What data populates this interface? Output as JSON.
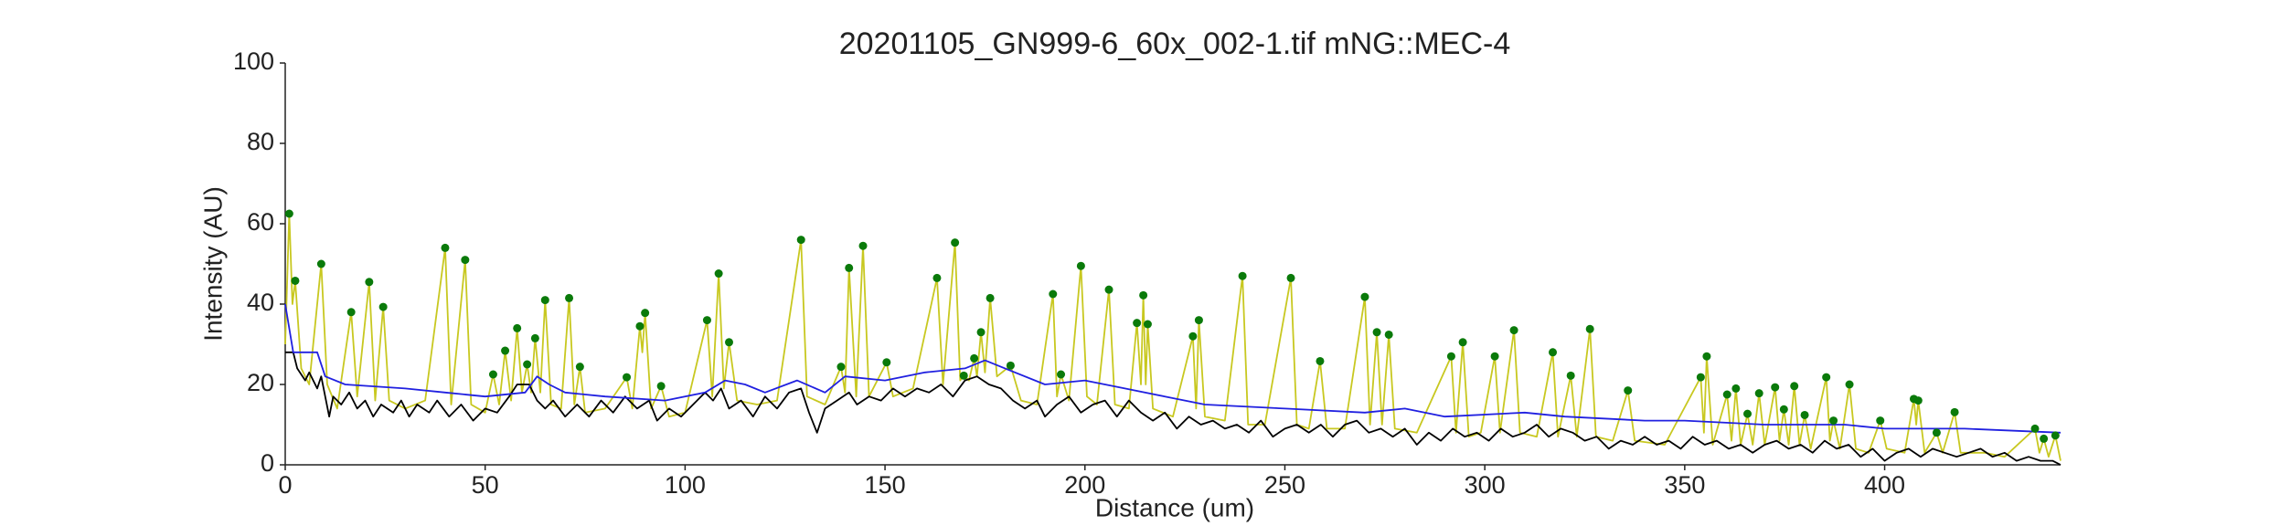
{
  "chart_data": {
    "type": "line",
    "title": "20201105_GN999-6_60x_002-1.tif mNG::MEC-4",
    "xlabel": "Distance (um)",
    "ylabel": "Intensity (AU)",
    "xlim": [
      0,
      444
    ],
    "ylim": [
      0,
      100
    ],
    "xticks": [
      0,
      50,
      100,
      150,
      200,
      250,
      300,
      350,
      400
    ],
    "yticks": [
      0,
      20,
      40,
      60,
      80,
      100
    ],
    "grid": false,
    "series": [
      {
        "color": "#c8c820",
        "mode": "line",
        "x": [
          0,
          1,
          1.8,
          2.5,
          4,
          6,
          9,
          10.5,
          13,
          16.5,
          18,
          21,
          22.5,
          24.5,
          26,
          30,
          35,
          40,
          41.5,
          45,
          46.5,
          50,
          52,
          53.5,
          55,
          56.5,
          58,
          59.2,
          60.5,
          61.5,
          62.5,
          63.8,
          65,
          66.5,
          69,
          71,
          72.3,
          73.7,
          75,
          80,
          85.4,
          86.8,
          88.7,
          89.3,
          90,
          91.5,
          94,
          96,
          100,
          105.5,
          106.8,
          108.4,
          109.7,
          111,
          113,
          118,
          123,
          129,
          130.5,
          135,
          139,
          140,
          141,
          142.8,
          144.5,
          146,
          150.4,
          152,
          157,
          163,
          164.5,
          167.5,
          168.8,
          169.7,
          171,
          172.3,
          173,
          174,
          175,
          176.3,
          178,
          181.4,
          184,
          188,
          192,
          193,
          194,
          196,
          199,
          200.5,
          203,
          206,
          207.5,
          211,
          213,
          214,
          214.6,
          215.2,
          215.7,
          217,
          222,
          227,
          227.8,
          228.5,
          230,
          235,
          239.4,
          240.8,
          245,
          251.5,
          253,
          256,
          258.8,
          260.5,
          265,
          270,
          271.3,
          273,
          274.3,
          276,
          277.5,
          283,
          291.6,
          292.8,
          294.5,
          296,
          299,
          302.5,
          303.8,
          307.3,
          308.8,
          313,
          317,
          318.3,
          321.5,
          323,
          326.3,
          327.8,
          332,
          335.8,
          337.5,
          345,
          354,
          354.8,
          355.5,
          357,
          360.6,
          361.7,
          362.8,
          364,
          365.7,
          367,
          368.6,
          370,
          372.6,
          373.7,
          374.8,
          376,
          377.4,
          378.7,
          380,
          381.5,
          385.4,
          386.3,
          387.2,
          388.8,
          391.2,
          392.8,
          396,
          398.9,
          400.5,
          405,
          407.3,
          407.9,
          408.4,
          410,
          413,
          414.5,
          417.5,
          419,
          425,
          430,
          437.6,
          438.7,
          439.8,
          441,
          442.7,
          444
        ],
        "values": [
          30,
          62.5,
          40,
          45.8,
          24,
          20,
          50,
          20,
          14,
          38,
          17,
          45.5,
          16,
          39.3,
          16,
          14,
          16,
          54,
          15,
          51,
          15,
          13,
          22.5,
          15,
          28.4,
          16,
          34,
          18,
          25,
          18,
          31.5,
          18,
          41,
          15,
          14,
          41.5,
          15,
          24.4,
          13,
          14,
          21.8,
          14,
          34.5,
          28,
          37.8,
          14,
          19.6,
          12,
          13,
          36,
          17,
          47.6,
          19,
          30.5,
          16,
          15,
          16,
          56,
          17,
          15,
          24.4,
          18,
          49,
          17,
          54.5,
          17,
          25.5,
          17,
          19,
          46.5,
          20,
          55.3,
          21,
          22.2,
          21,
          26.5,
          22,
          33,
          23,
          41.5,
          22,
          24.7,
          16,
          15,
          42.5,
          17,
          22.5,
          16,
          49.5,
          17,
          15,
          43.6,
          15,
          14,
          35.3,
          20,
          42.2,
          20,
          35,
          14,
          12,
          32,
          14,
          36,
          12,
          11,
          47,
          10,
          10,
          46.5,
          10,
          9,
          25.8,
          9,
          9,
          41.8,
          10,
          33,
          10,
          32.4,
          9,
          8,
          27,
          8,
          30.5,
          7,
          8,
          27,
          8,
          33.5,
          8,
          7,
          28,
          7,
          22.2,
          7,
          33.8,
          7,
          6,
          18.5,
          6,
          5,
          21.8,
          8,
          27,
          5,
          17.5,
          6,
          19,
          5,
          12.7,
          5,
          17.8,
          5,
          19.3,
          6,
          13.8,
          5,
          19.6,
          5,
          12.4,
          4,
          21.8,
          6,
          11,
          4,
          20,
          4,
          3,
          11,
          4,
          3,
          16.4,
          10,
          16,
          3,
          8,
          3,
          13.1,
          3,
          3,
          2,
          9,
          3,
          6.5,
          2,
          7.3,
          1
        ]
      },
      {
        "color": "#000000",
        "mode": "line",
        "x": [
          0,
          2,
          3,
          5,
          6,
          8,
          9,
          11,
          12,
          14,
          16,
          18,
          20,
          22,
          24,
          27,
          29,
          31,
          33,
          36,
          38,
          41,
          44,
          47,
          50,
          53,
          56,
          58,
          61,
          63,
          65,
          67,
          70,
          73,
          76,
          79,
          82,
          85,
          88,
          91,
          93,
          96,
          99,
          102,
          105,
          107,
          109,
          111,
          114,
          117,
          120,
          123,
          126,
          129,
          131,
          133,
          135,
          138,
          141,
          143,
          146,
          149,
          152,
          155,
          158,
          161,
          164,
          167,
          170,
          173,
          176,
          179,
          182,
          185,
          188,
          190,
          193,
          196,
          199,
          202,
          205,
          208,
          211,
          214,
          217,
          220,
          223,
          226,
          229,
          232,
          235,
          238,
          241,
          244,
          247,
          250,
          253,
          256,
          259,
          262,
          265,
          268,
          271,
          274,
          277,
          280,
          283,
          286,
          289,
          292,
          295,
          298,
          301,
          304,
          307,
          310,
          313,
          316,
          319,
          322,
          325,
          328,
          331,
          334,
          337,
          340,
          343,
          346,
          349,
          352,
          355,
          358,
          361,
          364,
          367,
          370,
          373,
          376,
          379,
          382,
          385,
          388,
          391,
          394,
          397,
          400,
          403,
          406,
          409,
          412,
          415,
          418,
          421,
          424,
          427,
          430,
          433,
          436,
          439,
          442,
          444
        ],
        "values": [
          28,
          28,
          24,
          21,
          23,
          19,
          22,
          12,
          17,
          15,
          18,
          14,
          16,
          12,
          15,
          13,
          16,
          12,
          15,
          13,
          16,
          12,
          15,
          11,
          14,
          13,
          17,
          20,
          20,
          16,
          14,
          16,
          12,
          15,
          12,
          16,
          13,
          17,
          14,
          16,
          11,
          14,
          12,
          15,
          18,
          16,
          19,
          14,
          16,
          12,
          17,
          14,
          18,
          19,
          13,
          8,
          14,
          16,
          18,
          15,
          17,
          16,
          19,
          17,
          19,
          18,
          20,
          17,
          21,
          22,
          20,
          19,
          16,
          14,
          16,
          12,
          15,
          17,
          13,
          15,
          16,
          12,
          16,
          13,
          11,
          13,
          9,
          12,
          10,
          11,
          9,
          10,
          8,
          11,
          7,
          9,
          10,
          8,
          10,
          7,
          10,
          11,
          8,
          9,
          7,
          9,
          5,
          8,
          6,
          9,
          7,
          8,
          6,
          9,
          7,
          8,
          10,
          7,
          9,
          8,
          6,
          7,
          4,
          6,
          5,
          7,
          5,
          6,
          4,
          7,
          5,
          6,
          4,
          5,
          3,
          5,
          6,
          4,
          5,
          3,
          6,
          4,
          5,
          2,
          4,
          1,
          3,
          4,
          2,
          4,
          3,
          2,
          3,
          4,
          2,
          3,
          1,
          2,
          1,
          1,
          0
        ]
      },
      {
        "color": "#2020e0",
        "mode": "line",
        "x": [
          0,
          2,
          8,
          10,
          15,
          30,
          40,
          50,
          60,
          63,
          66,
          70,
          80,
          95,
          105,
          110,
          115,
          120,
          128,
          135,
          140,
          150,
          160,
          170,
          175,
          180,
          190,
          200,
          210,
          220,
          230,
          250,
          270,
          280,
          290,
          310,
          320,
          340,
          350,
          370,
          390,
          400,
          420,
          444
        ],
        "values": [
          40,
          28,
          28,
          22,
          20,
          19,
          18,
          17,
          18,
          22,
          20,
          18,
          17,
          16,
          18,
          21,
          20,
          18,
          21,
          18,
          22,
          21,
          23,
          24,
          26,
          24,
          20,
          21,
          19,
          17,
          15,
          14,
          13,
          14,
          12,
          13,
          12,
          11,
          11,
          10,
          10,
          9,
          9,
          8
        ]
      },
      {
        "color": "#0a7a0a",
        "mode": "markers",
        "x": [
          1,
          2.5,
          9,
          16.5,
          21,
          24.5,
          40,
          45,
          52,
          55,
          58,
          60.5,
          62.5,
          65,
          71,
          73.7,
          85.4,
          88.7,
          90,
          94,
          105.5,
          108.4,
          111,
          129,
          139,
          141,
          144.5,
          150.4,
          163,
          167.5,
          169.7,
          172.3,
          174,
          176.3,
          181.4,
          192,
          194,
          199,
          206,
          213,
          214.6,
          215.7,
          227,
          228.5,
          239.4,
          251.5,
          258.8,
          270,
          273,
          276,
          291.6,
          294.5,
          302.5,
          307.3,
          317,
          321.5,
          326.3,
          335.8,
          354,
          355.5,
          360.6,
          362.8,
          365.7,
          368.6,
          372.6,
          374.8,
          377.4,
          380,
          385.4,
          387.2,
          391.2,
          398.9,
          407.3,
          408.4,
          413,
          417.5,
          437.6,
          439.8,
          442.7
        ],
        "values": [
          62.5,
          45.8,
          50,
          38,
          45.5,
          39.3,
          54,
          51,
          22.5,
          28.4,
          34,
          25,
          31.5,
          41,
          41.5,
          24.4,
          21.8,
          34.5,
          37.8,
          19.6,
          36,
          47.6,
          30.5,
          56,
          24.4,
          49,
          54.5,
          25.5,
          46.5,
          55.3,
          22.2,
          26.5,
          33,
          41.5,
          24.7,
          42.5,
          22.5,
          49.5,
          43.6,
          35.3,
          42.2,
          35,
          32,
          36,
          47,
          46.5,
          25.8,
          41.8,
          33,
          32.4,
          27,
          30.5,
          27,
          33.5,
          28,
          22.2,
          33.8,
          18.5,
          21.8,
          27,
          17.5,
          19,
          12.7,
          17.8,
          19.3,
          13.8,
          19.6,
          12.4,
          21.8,
          11,
          20,
          11,
          16.4,
          16,
          8,
          13.1,
          9,
          6.5,
          7.3
        ]
      }
    ]
  }
}
